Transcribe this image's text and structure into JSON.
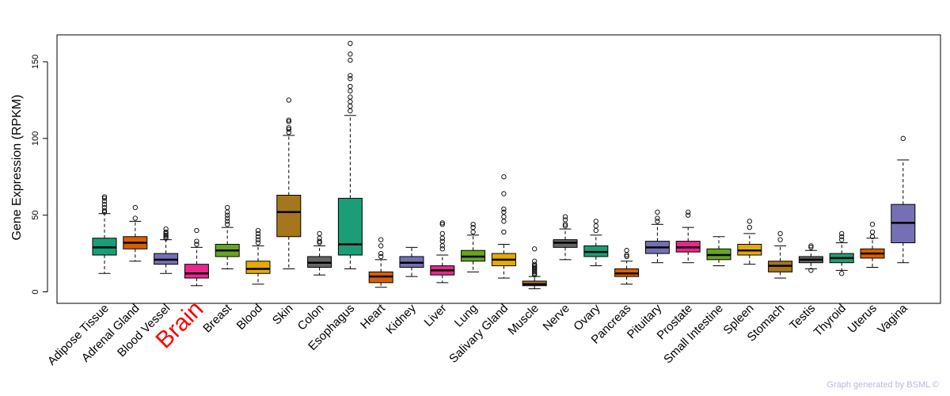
{
  "chart_data": {
    "type": "boxplot",
    "title": "",
    "xlabel": "",
    "ylabel": "Gene Expression (RPKM)",
    "ylim": [
      -3,
      168
    ],
    "yticks": [
      0,
      50,
      100,
      150
    ],
    "highlight": "Brain",
    "highlight_color": "#ff0000",
    "categories": [
      {
        "name": "Adipose Tissue",
        "color": "#1b9e77",
        "min": 12,
        "q1": 24,
        "median": 29,
        "q3": 35,
        "max": 51,
        "outliers": [
          52,
          53,
          55,
          57,
          59,
          61,
          62
        ]
      },
      {
        "name": "Adrenal Gland",
        "color": "#d95f02",
        "min": 20,
        "q1": 28,
        "median": 32,
        "q3": 36,
        "max": 46,
        "outliers": [
          48,
          55
        ]
      },
      {
        "name": "Blood Vessel",
        "color": "#7570b3",
        "min": 12,
        "q1": 18,
        "median": 21,
        "q3": 25,
        "max": 34,
        "outliers": [
          35,
          36,
          37,
          38,
          39,
          41
        ]
      },
      {
        "name": "Brain",
        "color": "#e7298a",
        "min": 4,
        "q1": 9,
        "median": 12,
        "q3": 18,
        "max": 29,
        "outliers": [
          31,
          33,
          40
        ]
      },
      {
        "name": "Breast",
        "color": "#66a61e",
        "min": 15,
        "q1": 23,
        "median": 27,
        "q3": 31,
        "max": 42,
        "outliers": [
          44,
          46,
          48,
          50,
          52,
          55
        ]
      },
      {
        "name": "Blood",
        "color": "#e6ab02",
        "min": 5,
        "q1": 12,
        "median": 15,
        "q3": 20,
        "max": 30,
        "outliers": [
          32,
          34,
          36,
          38,
          40
        ]
      },
      {
        "name": "Skin",
        "color": "#a6761d",
        "min": 15,
        "q1": 36,
        "median": 52,
        "q3": 63,
        "max": 102,
        "outliers": [
          104,
          106,
          107,
          111,
          112,
          125
        ]
      },
      {
        "name": "Colon",
        "color": "#666666",
        "min": 11,
        "q1": 16,
        "median": 19,
        "q3": 23,
        "max": 30,
        "outliers": [
          32,
          33,
          35,
          38
        ]
      },
      {
        "name": "Esophagus",
        "color": "#1b9e77",
        "min": 15,
        "q1": 24,
        "median": 31,
        "q3": 61,
        "max": 115,
        "outliers": [
          118,
          121,
          124,
          127,
          131,
          134,
          139,
          141,
          151,
          155,
          162
        ]
      },
      {
        "name": "Heart",
        "color": "#d95f02",
        "min": 3,
        "q1": 6,
        "median": 10,
        "q3": 13,
        "max": 21,
        "outliers": [
          23,
          25,
          30,
          34
        ]
      },
      {
        "name": "Kidney",
        "color": "#7570b3",
        "min": 10,
        "q1": 16,
        "median": 19,
        "q3": 23,
        "max": 29,
        "outliers": []
      },
      {
        "name": "Liver",
        "color": "#e7298a",
        "min": 6,
        "q1": 11,
        "median": 14,
        "q3": 17,
        "max": 24,
        "outliers": [
          28,
          30,
          33,
          35,
          38,
          44,
          45
        ]
      },
      {
        "name": "Lung",
        "color": "#66a61e",
        "min": 13,
        "q1": 20,
        "median": 23,
        "q3": 27,
        "max": 37,
        "outliers": [
          39,
          42,
          44
        ]
      },
      {
        "name": "Salivary Gland",
        "color": "#e6ab02",
        "min": 9,
        "q1": 17,
        "median": 21,
        "q3": 25,
        "max": 31,
        "outliers": [
          39,
          46,
          49,
          52,
          54,
          64,
          75
        ]
      },
      {
        "name": "Muscle",
        "color": "#a6761d",
        "min": 2,
        "q1": 4,
        "median": 5,
        "q3": 7,
        "max": 10,
        "outliers": [
          11,
          12,
          13,
          14,
          15,
          16,
          17,
          18,
          20,
          28
        ]
      },
      {
        "name": "Nerve",
        "color": "#666666",
        "min": 21,
        "q1": 29,
        "median": 32,
        "q3": 34,
        "max": 41,
        "outliers": [
          43,
          44,
          47,
          49
        ]
      },
      {
        "name": "Ovary",
        "color": "#1b9e77",
        "min": 17,
        "q1": 23,
        "median": 26,
        "q3": 30,
        "max": 37,
        "outliers": [
          40,
          43,
          46
        ]
      },
      {
        "name": "Pancreas",
        "color": "#d95f02",
        "min": 5,
        "q1": 10,
        "median": 12,
        "q3": 15,
        "max": 20,
        "outliers": [
          23,
          24,
          27
        ]
      },
      {
        "name": "Pituitary",
        "color": "#7570b3",
        "min": 19,
        "q1": 25,
        "median": 29,
        "q3": 33,
        "max": 44,
        "outliers": [
          46,
          48,
          52
        ]
      },
      {
        "name": "Prostate",
        "color": "#e7298a",
        "min": 19,
        "q1": 26,
        "median": 29,
        "q3": 33,
        "max": 42,
        "outliers": [
          50,
          52
        ]
      },
      {
        "name": "Small Intestine",
        "color": "#66a61e",
        "min": 17,
        "q1": 21,
        "median": 24,
        "q3": 28,
        "max": 36,
        "outliers": []
      },
      {
        "name": "Spleen",
        "color": "#e6ab02",
        "min": 18,
        "q1": 24,
        "median": 27,
        "q3": 31,
        "max": 38,
        "outliers": [
          42,
          46
        ]
      },
      {
        "name": "Stomach",
        "color": "#a6761d",
        "min": 9,
        "q1": 13,
        "median": 17,
        "q3": 20,
        "max": 30,
        "outliers": [
          34,
          38
        ]
      },
      {
        "name": "Testis",
        "color": "#666666",
        "min": 15,
        "q1": 19,
        "median": 21,
        "q3": 23,
        "max": 27,
        "outliers": [
          14,
          29,
          30
        ]
      },
      {
        "name": "Thyroid",
        "color": "#1b9e77",
        "min": 14,
        "q1": 19,
        "median": 22,
        "q3": 25,
        "max": 32,
        "outliers": [
          12,
          34,
          36,
          38
        ]
      },
      {
        "name": "Uterus",
        "color": "#d95f02",
        "min": 16,
        "q1": 22,
        "median": 25,
        "q3": 28,
        "max": 35,
        "outliers": [
          36,
          39,
          44
        ]
      },
      {
        "name": "Vagina",
        "color": "#7570b3",
        "min": 19,
        "q1": 32,
        "median": 45,
        "q3": 57,
        "max": 86,
        "outliers": [
          100
        ]
      }
    ]
  },
  "credit": "Graph generated by BSML ©"
}
